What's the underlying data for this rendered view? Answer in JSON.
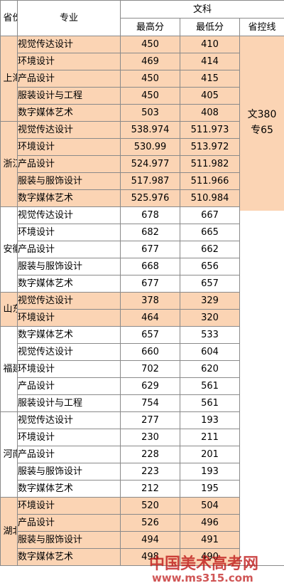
{
  "header": {
    "province": "省份",
    "major": "专业",
    "category": "文科",
    "max": "最高分",
    "min": "最低分",
    "control": "省控线"
  },
  "control_line": {
    "line1": "文380",
    "line2": "专65"
  },
  "groups": [
    {
      "province": "上海",
      "rows": [
        {
          "major": "视觉传达设计",
          "max": "450",
          "min": "410"
        },
        {
          "major": "环境设计",
          "max": "469",
          "min": "414"
        },
        {
          "major": "产品设计",
          "max": "450",
          "min": "415"
        },
        {
          "major": "服装设计与工程",
          "max": "450",
          "min": "405"
        },
        {
          "major": "数字媒体艺术",
          "max": "503",
          "min": "408"
        }
      ]
    },
    {
      "province": "浙江",
      "rows": [
        {
          "major": "视觉传达设计",
          "max": "538.974",
          "min": "511.973"
        },
        {
          "major": "环境设计",
          "max": "530.99",
          "min": "513.972"
        },
        {
          "major": "产品设计",
          "max": "524.977",
          "min": "511.982"
        },
        {
          "major": "服装与服饰设计",
          "max": "517.987",
          "min": "511.966"
        },
        {
          "major": "数字媒体艺术",
          "max": "525.976",
          "min": "510.984"
        }
      ]
    },
    {
      "province": "安徽",
      "rows": [
        {
          "major": "视觉传达设计",
          "max": "678",
          "min": "667"
        },
        {
          "major": "环境设计",
          "max": "682",
          "min": "665"
        },
        {
          "major": "产品设计",
          "max": "677",
          "min": "662"
        },
        {
          "major": "服装与服饰设计",
          "max": "668",
          "min": "656"
        },
        {
          "major": "数字媒体艺术",
          "max": "677",
          "min": "657"
        }
      ]
    },
    {
      "province": "山东",
      "rows": [
        {
          "major": "视觉传达设计",
          "max": "378",
          "min": "329"
        },
        {
          "major": "环境设计",
          "max": "464",
          "min": "320"
        }
      ]
    },
    {
      "province": "福建",
      "rows": [
        {
          "major": "数字媒体艺术",
          "max": "657",
          "min": "533"
        },
        {
          "major": "视觉传达设计",
          "max": "660",
          "min": "604"
        },
        {
          "major": "环境设计",
          "max": "702",
          "min": "620"
        },
        {
          "major": "产品设计",
          "max": "629",
          "min": "561"
        },
        {
          "major": "服装设计与工程",
          "max": "754",
          "min": "561"
        }
      ]
    },
    {
      "province": "河南",
      "rows": [
        {
          "major": "视觉传达设计",
          "max": "277",
          "min": "193"
        },
        {
          "major": "环境设计",
          "max": "230",
          "min": "211"
        },
        {
          "major": "产品设计",
          "max": "228",
          "min": "201"
        },
        {
          "major": "服装与服饰设计",
          "max": "223",
          "min": "193"
        },
        {
          "major": "数字媒体艺术",
          "max": "212",
          "min": "195"
        }
      ]
    },
    {
      "province": "湖北",
      "rows": [
        {
          "major": "环境设计",
          "max": "520",
          "min": "504"
        },
        {
          "major": "产品设计",
          "max": "526",
          "min": "496"
        },
        {
          "major": "服装与服饰设计",
          "max": "494",
          "min": "491"
        },
        {
          "major": "数字媒体艺术",
          "max": "498",
          "min": "490"
        }
      ]
    }
  ],
  "colors": {
    "peach": "#fbd4b4",
    "white": "#ffffff",
    "watermark": "#be1414"
  },
  "watermark": {
    "text": "中国美术高考网",
    "url": "www.ms315.com"
  }
}
